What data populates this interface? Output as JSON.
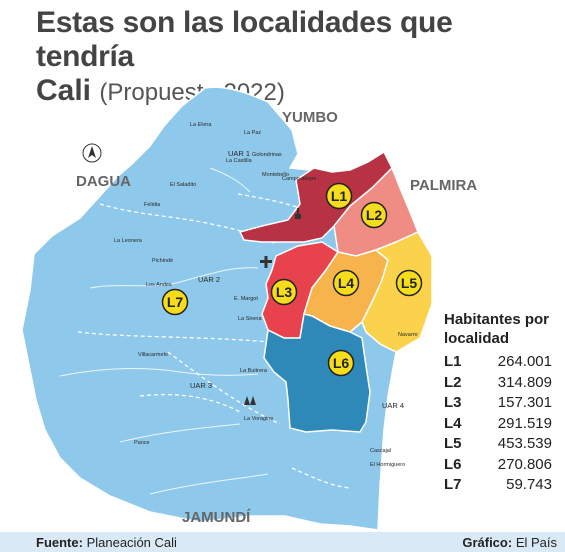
{
  "title": {
    "line1": "Estas son las localidades que tendría",
    "line2_bold": "Cali",
    "line2_light": "(Propuesta 2022)"
  },
  "neighbors": {
    "north": "YUMBO",
    "west": "DAGUA",
    "east": "PALMIRA",
    "south": "JAMUNDÍ"
  },
  "localidades": [
    {
      "id": "L1",
      "color": "#b73344"
    },
    {
      "id": "L2",
      "color": "#ef8d84"
    },
    {
      "id": "L3",
      "color": "#e8434d"
    },
    {
      "id": "L4",
      "color": "#f8b44c"
    },
    {
      "id": "L5",
      "color": "#fbd24b"
    },
    {
      "id": "L6",
      "color": "#2e89b8"
    },
    {
      "id": "L7",
      "color": "#8ec8ea"
    }
  ],
  "uar_labels": [
    "UAR 1",
    "UAR 2",
    "UAR 3",
    "UAR 4"
  ],
  "place_labels": [
    "La Elvira",
    "La Paz",
    "Golondrinas",
    "La Castilla",
    "Montebello",
    "El Saladito",
    "Felidia",
    "La Leonera",
    "Pichindé",
    "Los Andes",
    "E. Margot",
    "La Sirena",
    "Villacarmelo",
    "La Buitrera",
    "La Voragine",
    "Pance",
    "Navarro",
    "Cascajal",
    "El Hormiguero",
    "Campo alegre"
  ],
  "legend": {
    "title": "Habitantes por localidad",
    "rows": [
      {
        "name": "L1",
        "value": "264.001"
      },
      {
        "name": "L2",
        "value": "314.809"
      },
      {
        "name": "L3",
        "value": "157.301"
      },
      {
        "name": "L4",
        "value": "291.519"
      },
      {
        "name": "L5",
        "value": "453.539"
      },
      {
        "name": "L6",
        "value": "270.806"
      },
      {
        "name": "L7",
        "value": "59.743"
      }
    ]
  },
  "colors": {
    "rural": "#8ec8ea",
    "urban_outline": "#ffffff",
    "marker_fill": "#f6dd1c"
  },
  "footer": {
    "source_label": "Fuente:",
    "source_value": "Planeación Cali",
    "credit_label": "Gráfico:",
    "credit_value": "El País"
  }
}
